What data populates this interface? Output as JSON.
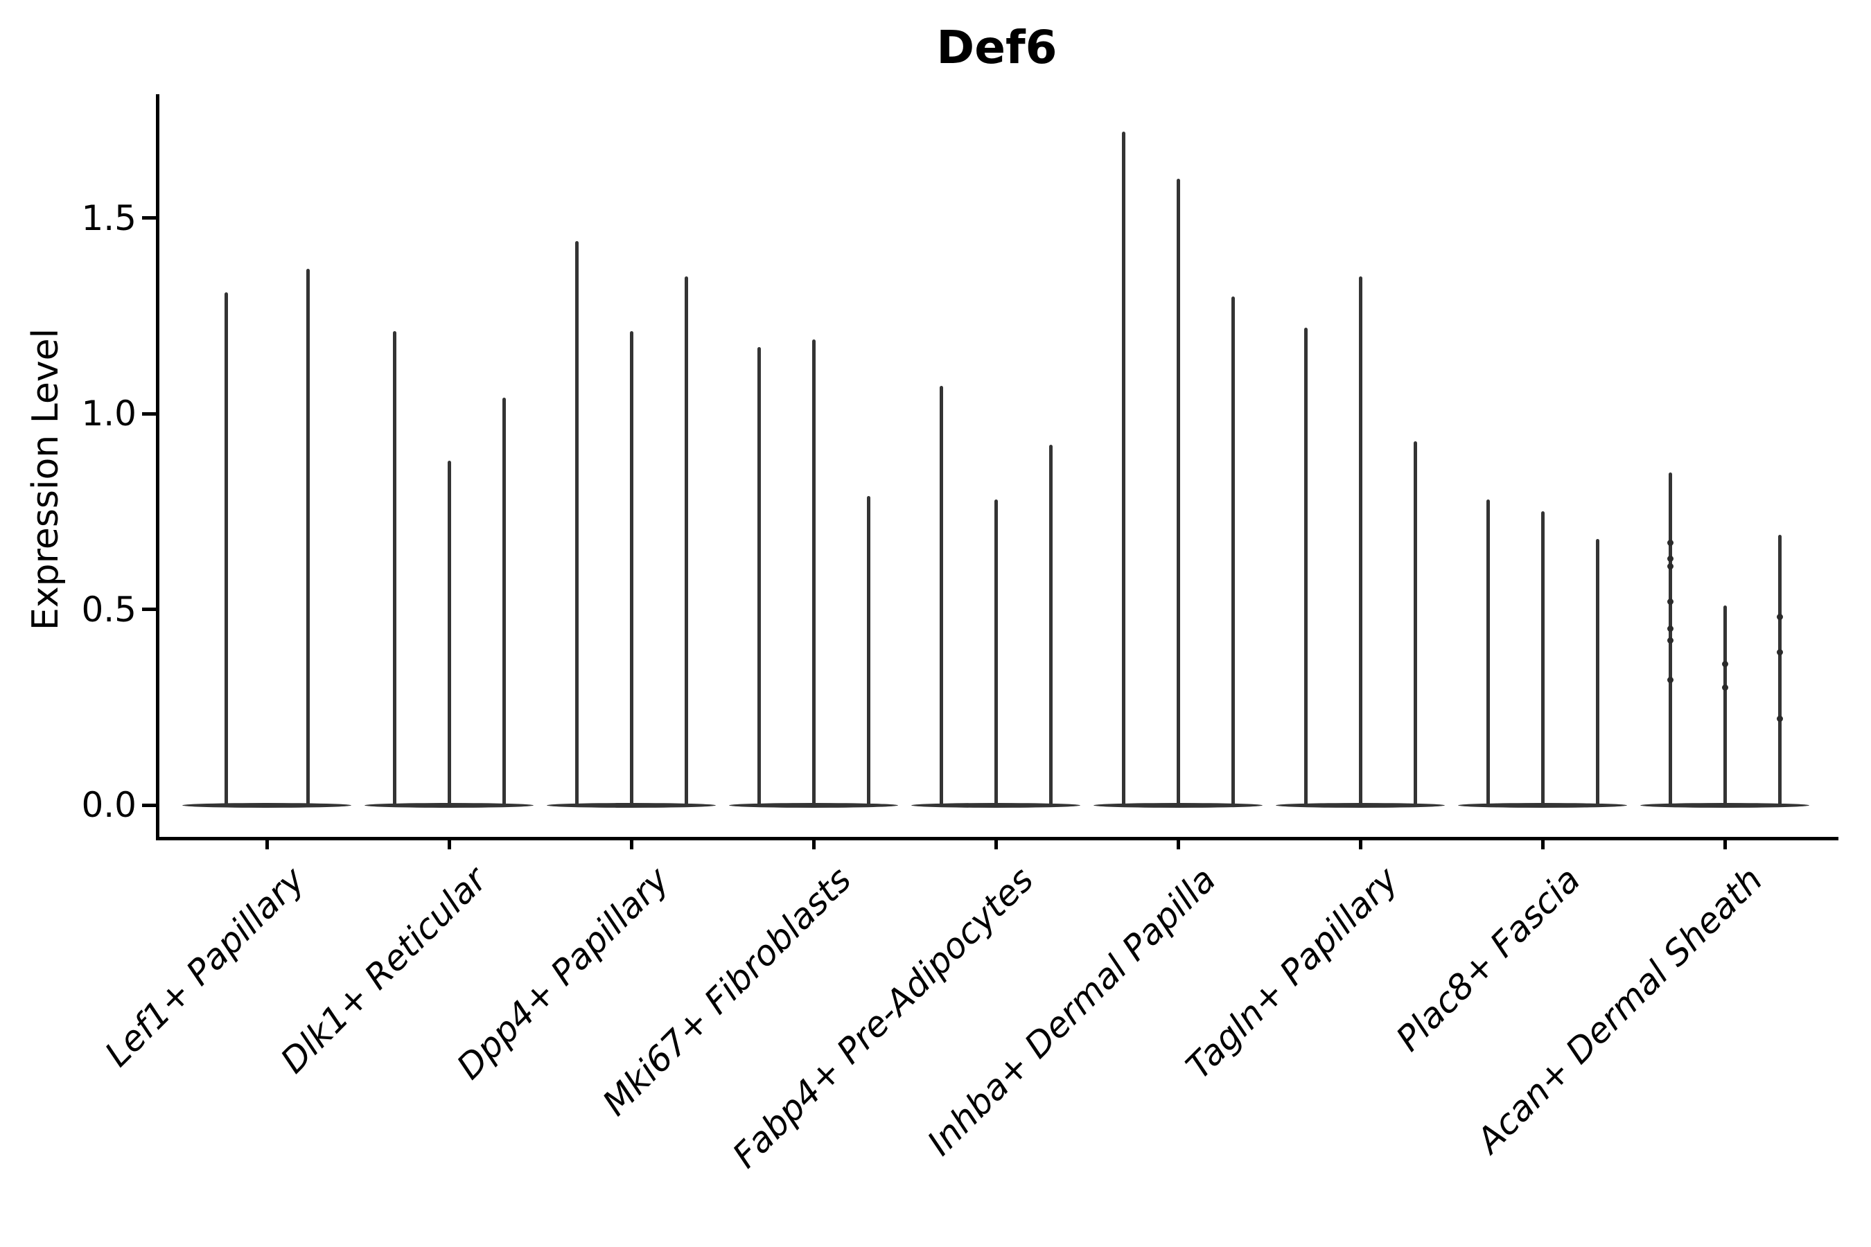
{
  "figure": {
    "title": "Def6",
    "ylabel": "Expression Level",
    "background_color": "#ffffff",
    "violin_color": "#343434",
    "axis_color": "#000000",
    "text_color": "#000000"
  },
  "chart_data": {
    "type": "violin",
    "title": "Def6",
    "xlabel": "",
    "ylabel": "Expression Level",
    "ylim": [
      0,
      1.81
    ],
    "yticks": [
      0.0,
      0.5,
      1.0,
      1.5
    ],
    "ytick_labels": [
      "0.0",
      "0.5",
      "1.0",
      "1.5"
    ],
    "grid": false,
    "legend": false,
    "xtick_label_style": "italic, rotated 45deg",
    "violin_shape": "needle-thin violins: wide flat density base at 0 with a thin vertical spike rising to the maximum expression value; multiple violins per category",
    "categories": [
      "Lef1+ Papillary",
      "Dlk1+ Reticular",
      "Dpp4+ Papillary",
      "Mki67+ Fibroblasts",
      "Fabp4+ Pre-Adipocytes",
      "Inhba+ Dermal Papilla",
      "Tagln+ Papillary",
      "Plac8+ Fascia",
      "Acan+ Dermal Sheath"
    ],
    "groups": [
      {
        "category": "Lef1+ Papillary",
        "violin_max_values": [
          1.31,
          1.37
        ]
      },
      {
        "category": "Dlk1+ Reticular",
        "violin_max_values": [
          1.21,
          0.88,
          1.04
        ]
      },
      {
        "category": "Dpp4+ Papillary",
        "violin_max_values": [
          1.44,
          1.21,
          1.35
        ]
      },
      {
        "category": "Mki67+ Fibroblasts",
        "violin_max_values": [
          1.17,
          1.19,
          0.79
        ]
      },
      {
        "category": "Fabp4+ Pre-Adipocytes",
        "violin_max_values": [
          1.07,
          0.78,
          0.92
        ]
      },
      {
        "category": "Inhba+ Dermal Papilla",
        "violin_max_values": [
          1.72,
          1.6,
          1.3
        ]
      },
      {
        "category": "Tagln+ Papillary",
        "violin_max_values": [
          1.22,
          1.35,
          0.93
        ]
      },
      {
        "category": "Plac8+ Fascia",
        "violin_max_values": [
          0.78,
          0.75,
          0.68
        ]
      },
      {
        "category": "Acan+ Dermal Sheath",
        "violin_max_values": [
          0.85,
          0.51,
          0.69
        ],
        "visible_points": [
          [
            0.67,
            0.63,
            0.61,
            0.52,
            0.45,
            0.42,
            0.32
          ],
          [
            0.36,
            0.3
          ],
          [
            0.48,
            0.39,
            0.22
          ]
        ]
      }
    ]
  }
}
